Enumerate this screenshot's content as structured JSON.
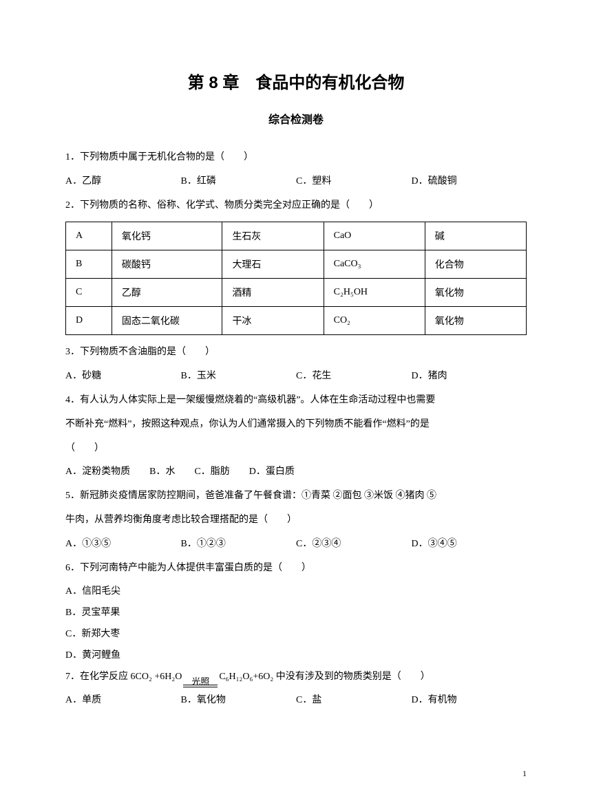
{
  "title": "第 8 章　食品中的有机化合物",
  "subtitle": "综合检测卷",
  "q1": {
    "text": "1．下列物质中属于无机化合物的是（　　）",
    "A": "A．乙醇",
    "B": "B．红磷",
    "C": "C．塑料",
    "D": "D．硫酸铜"
  },
  "q2": {
    "text": "2．下列物质的名称、俗称、化学式、物质分类完全对应正确的是（　　）",
    "table": {
      "rows": [
        [
          "A",
          "氧化钙",
          "生石灰",
          "CaO",
          "碱"
        ],
        [
          "B",
          "碳酸钙",
          "大理石",
          "CaCO₃",
          "化合物"
        ],
        [
          "C",
          "乙醇",
          "酒精",
          "C₂H₅OH",
          "氧化物"
        ],
        [
          "D",
          "固态二氧化碳",
          "干冰",
          "CO₂",
          "氧化物"
        ]
      ]
    }
  },
  "q3": {
    "text": "3．下列物质不含油脂的是（　　）",
    "A": "A．砂糖",
    "B": "B．玉米",
    "C": "C．花生",
    "D": "D．猪肉"
  },
  "q4": {
    "text1": "4．有人认为人体实际上是一架缓慢燃烧着的“高级机器”。人体在生命活动过程中也需要",
    "text2": "不断补充“燃料”，按照这种观点，你认为人们通常摄入的下列物质不能看作“燃料”的是",
    "text3": "（　　）",
    "opts": "A．淀粉类物质　　B．水　　C．脂肪　　D．蛋白质"
  },
  "q5": {
    "text1": "5．新冠肺炎疫情居家防控期间，爸爸准备了午餐食谱：①青菜 ②面包 ③米饭 ④猪肉 ⑤",
    "text2": "牛肉，从营养均衡角度考虑比较合理搭配的是（　　）",
    "A": "A．①③⑤",
    "B": "B．①②③",
    "C": "C．②③④",
    "D": "D．③④⑤"
  },
  "q6": {
    "text": "6．下列河南特产中能为人体提供丰富蛋白质的是（　　）",
    "A": "A．信阳毛尖",
    "B": "B．灵宝苹果",
    "C": "C．新郑大枣",
    "D": "D．黄河鲤鱼"
  },
  "q7": {
    "prefix": "7．在化学反应 6CO₂ +6H₂O",
    "arrow_label": "光照",
    "suffix": "C₆H₁₂O₆+6O₂ 中没有涉及到的物质类别是（　　）",
    "A": "A．单质",
    "B": "B．氧化物",
    "C": "C．盐",
    "D": "D．有机物"
  },
  "page_num": "1"
}
